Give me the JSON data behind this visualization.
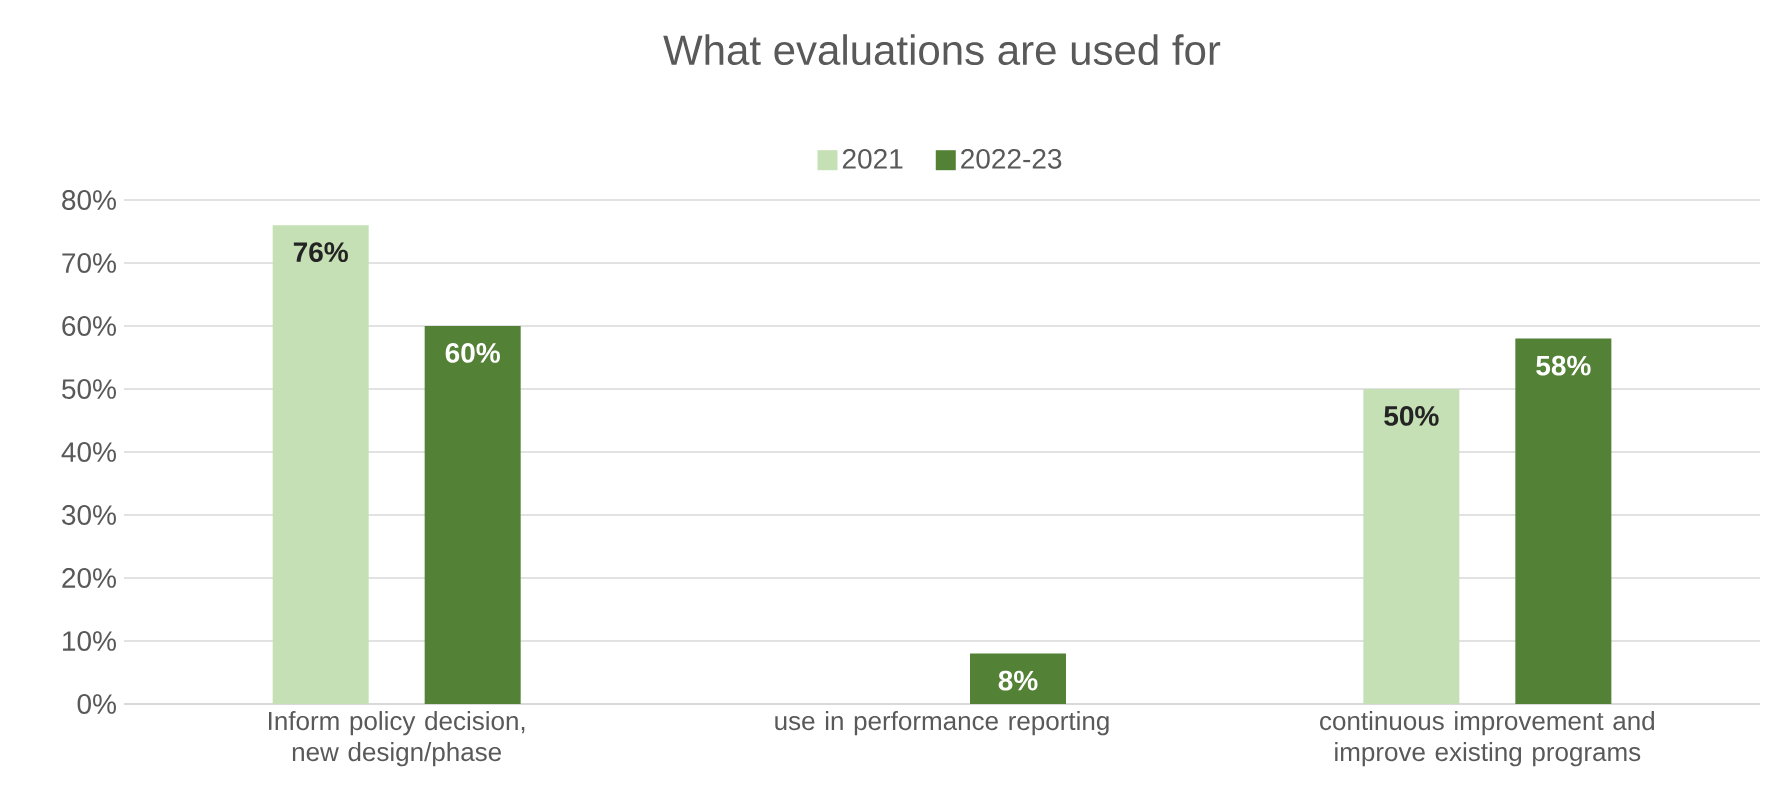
{
  "chart_data": {
    "type": "bar",
    "title": "What evaluations are used for",
    "categories": [
      "Inform policy decision, new design/phase",
      "use in performance reporting",
      "continuous improvement and improve existing programs"
    ],
    "series": [
      {
        "name": "2021",
        "color": "#c5e0b4",
        "values": [
          76,
          null,
          50
        ],
        "value_labels": [
          "76%",
          null,
          "50%"
        ]
      },
      {
        "name": "2022-23",
        "color": "#538135",
        "values": [
          60,
          8,
          58
        ],
        "value_labels": [
          "60%",
          "8%",
          "58%"
        ]
      }
    ],
    "ylim": [
      0,
      80
    ],
    "yticks": [
      {
        "value": 0,
        "label": "0%"
      },
      {
        "value": 10,
        "label": "10%"
      },
      {
        "value": 20,
        "label": "20%"
      },
      {
        "value": 30,
        "label": "30%"
      },
      {
        "value": 40,
        "label": "40%"
      },
      {
        "value": 50,
        "label": "50%"
      },
      {
        "value": 60,
        "label": "60%"
      },
      {
        "value": 70,
        "label": "70%"
      },
      {
        "value": 80,
        "label": "80%"
      }
    ],
    "grid": "y",
    "legend": "top"
  }
}
